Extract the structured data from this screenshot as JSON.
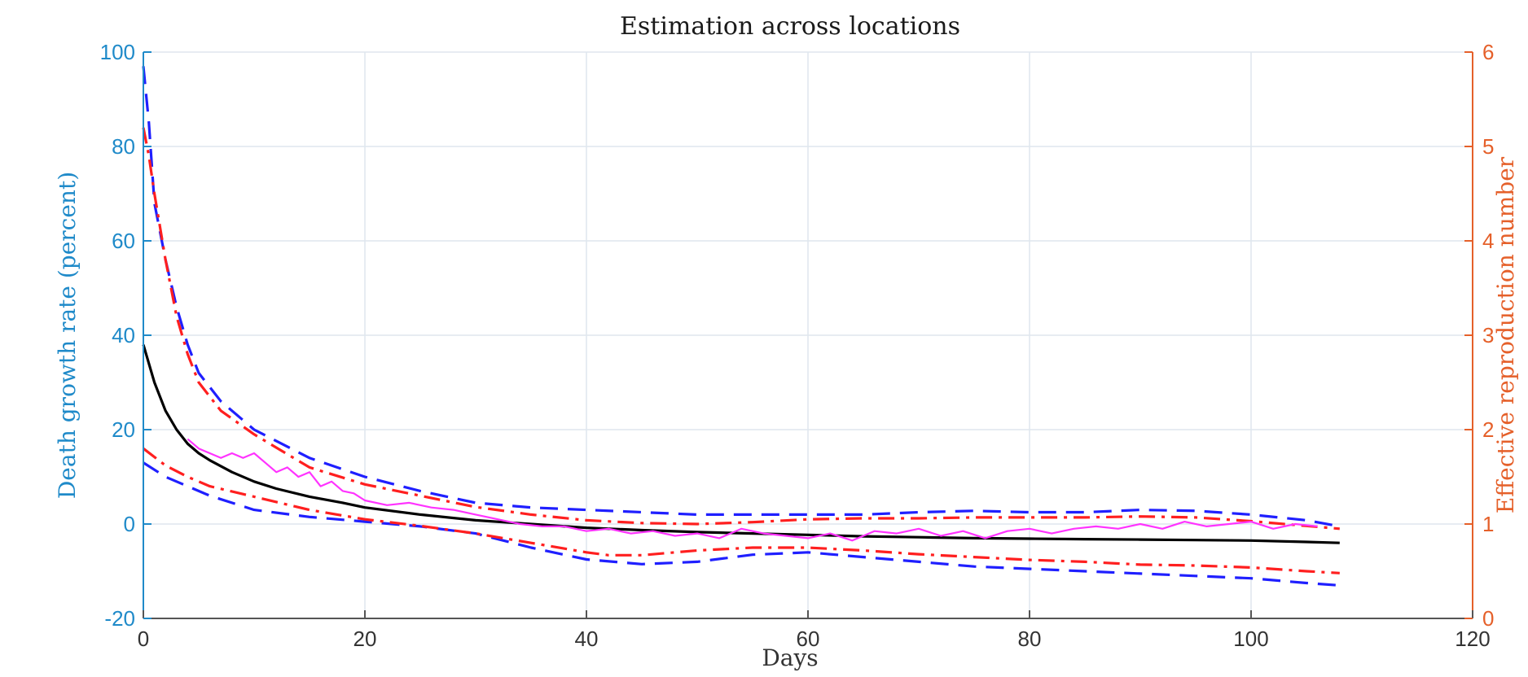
{
  "chart_data": {
    "type": "line",
    "title": "Estimation across locations",
    "xlabel": "Days",
    "ylabel_left": "Death growth rate (percent)",
    "ylabel_right": "Effective reproduction number",
    "xlim": [
      0,
      120
    ],
    "ylim_left": [
      -20,
      100
    ],
    "ylim_right": [
      0,
      6
    ],
    "x_ticks": [
      "0",
      "20",
      "40",
      "60",
      "80",
      "100",
      "120"
    ],
    "y_left_ticks": [
      "-20",
      "0",
      "20",
      "40",
      "60",
      "80",
      "100"
    ],
    "y_right_ticks": [
      "0",
      "1",
      "2",
      "3",
      "4",
      "5",
      "6"
    ],
    "grid": true,
    "colors": {
      "left_axis": "#1f8ac9",
      "right_axis": "#e5602a",
      "grid": "#dfe6ee",
      "black_line": "#000000",
      "blue_dashed": "#1f1fff",
      "red_dashdot": "#ff1f1f",
      "magenta": "#ff33ff"
    },
    "series": [
      {
        "axis": "left",
        "style": "solid",
        "color": "#000000",
        "x": [
          0,
          1,
          2,
          3,
          4,
          5,
          6,
          8,
          10,
          12,
          15,
          18,
          20,
          25,
          30,
          35,
          40,
          45,
          50,
          55,
          60,
          65,
          70,
          75,
          80,
          85,
          90,
          95,
          100,
          105,
          108
        ],
        "values": [
          38,
          30,
          24,
          20,
          17,
          15,
          13.5,
          11,
          9,
          7.5,
          5.8,
          4.5,
          3.5,
          2,
          0.8,
          0,
          -0.8,
          -1.3,
          -1.7,
          -2,
          -2.3,
          -2.6,
          -2.8,
          -3,
          -3.1,
          -3.2,
          -3.3,
          -3.4,
          -3.5,
          -3.8,
          -4
        ]
      },
      {
        "axis": "left",
        "style": "dashed",
        "color": "#1f1fff",
        "x": [
          0,
          0.5,
          1,
          2,
          3,
          4,
          5,
          7,
          10,
          15,
          20,
          25,
          30,
          35,
          40,
          45,
          50,
          55,
          60,
          65,
          70,
          75,
          80,
          85,
          90,
          95,
          100,
          105,
          108
        ],
        "values": [
          97,
          85,
          68,
          56,
          46,
          38,
          32,
          26,
          20,
          14,
          10,
          7,
          4.5,
          3.5,
          3,
          2.5,
          2,
          2,
          2,
          2,
          2.5,
          2.8,
          2.5,
          2.5,
          3,
          2.8,
          2,
          0.8,
          -0.5
        ]
      },
      {
        "axis": "left",
        "style": "dashed",
        "color": "#1f1fff",
        "x": [
          0,
          2,
          4,
          6,
          10,
          15,
          20,
          25,
          30,
          35,
          40,
          45,
          50,
          55,
          60,
          65,
          70,
          75,
          80,
          85,
          90,
          95,
          100,
          105,
          108
        ],
        "values": [
          13,
          10,
          8,
          6,
          3,
          1.5,
          0.5,
          -0.5,
          -2,
          -5,
          -7.5,
          -8.5,
          -8,
          -6.5,
          -6,
          -7,
          -8,
          -9,
          -9.5,
          -10,
          -10.5,
          -11,
          -11.5,
          -12.5,
          -13
        ]
      },
      {
        "axis": "right",
        "style": "dashdot",
        "color": "#ff1f1f",
        "x": [
          0,
          0.5,
          1,
          2,
          3,
          4,
          5,
          7,
          10,
          15,
          20,
          25,
          30,
          35,
          40,
          45,
          50,
          55,
          60,
          65,
          70,
          75,
          80,
          85,
          90,
          95,
          100,
          105,
          108
        ],
        "values": [
          5.2,
          4.9,
          4.5,
          3.8,
          3.2,
          2.8,
          2.5,
          2.2,
          1.95,
          1.6,
          1.42,
          1.3,
          1.18,
          1.1,
          1.04,
          1.01,
          1.0,
          1.02,
          1.05,
          1.06,
          1.06,
          1.07,
          1.07,
          1.07,
          1.08,
          1.07,
          1.03,
          0.98,
          0.95
        ]
      },
      {
        "axis": "right",
        "style": "dashdot",
        "color": "#ff1f1f",
        "x": [
          0,
          2,
          4,
          6,
          10,
          15,
          20,
          25,
          30,
          35,
          40,
          42,
          45,
          50,
          55,
          60,
          65,
          70,
          75,
          80,
          85,
          90,
          95,
          100,
          105,
          108
        ],
        "values": [
          1.8,
          1.62,
          1.5,
          1.4,
          1.29,
          1.15,
          1.05,
          0.98,
          0.9,
          0.8,
          0.7,
          0.67,
          0.67,
          0.72,
          0.75,
          0.75,
          0.72,
          0.68,
          0.65,
          0.62,
          0.6,
          0.57,
          0.56,
          0.54,
          0.5,
          0.48
        ]
      },
      {
        "axis": "left",
        "style": "solid",
        "color": "#ff33ff",
        "x": [
          4,
          5,
          6,
          7,
          8,
          9,
          10,
          11,
          12,
          13,
          14,
          15,
          16,
          17,
          18,
          19,
          20,
          22,
          24,
          26,
          28,
          30,
          32,
          34,
          36,
          38,
          40,
          42,
          44,
          46,
          48,
          50,
          52,
          54,
          56,
          58,
          60,
          62,
          64,
          66,
          68,
          70,
          72,
          74,
          76,
          78,
          80,
          82,
          84,
          86,
          88,
          90,
          92,
          94,
          96,
          98,
          100,
          102,
          104,
          106
        ],
        "values": [
          18,
          16,
          15,
          14,
          15,
          14,
          15,
          13,
          11,
          12,
          10,
          11,
          8,
          9,
          7,
          6.5,
          5,
          4,
          4.5,
          3.5,
          3,
          2,
          1,
          0,
          -0.5,
          -0.5,
          -1.5,
          -1,
          -2,
          -1.5,
          -2.5,
          -2,
          -3,
          -1,
          -2,
          -2.5,
          -3,
          -2,
          -3.5,
          -1.5,
          -2,
          -1,
          -2.5,
          -1.5,
          -3,
          -1.5,
          -1,
          -2,
          -1,
          -0.5,
          -1,
          0,
          -1,
          0.5,
          -0.5,
          0,
          0.5,
          -1,
          0,
          -0.5
        ]
      }
    ]
  }
}
